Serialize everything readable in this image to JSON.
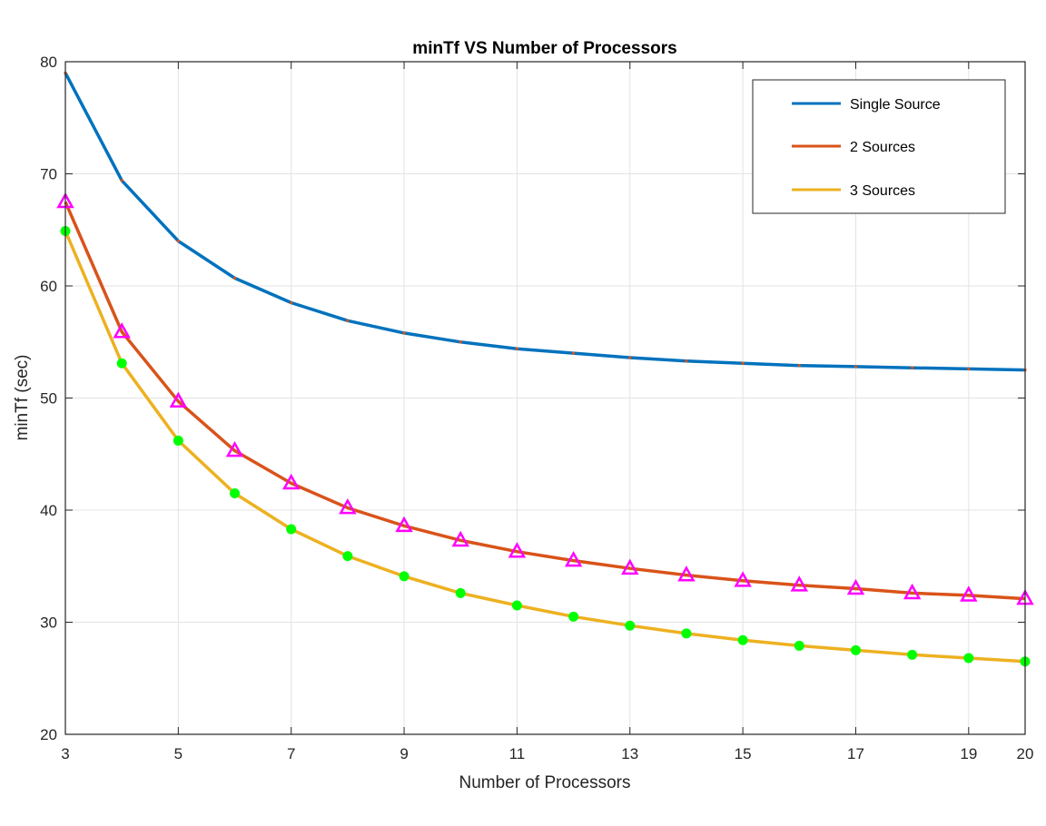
{
  "chart_data": {
    "type": "line",
    "title": "minTf VS Number of Processors",
    "xlabel": "Number of Processors",
    "ylabel": "minTf (sec)",
    "xlim": [
      3,
      20
    ],
    "ylim": [
      20,
      80
    ],
    "xticks": [
      3,
      5,
      7,
      9,
      11,
      13,
      15,
      17,
      19,
      20
    ],
    "yticks": [
      20,
      30,
      40,
      50,
      60,
      70,
      80
    ],
    "grid": true,
    "legend_position": "top-right",
    "x": [
      3,
      4,
      5,
      6,
      7,
      8,
      9,
      10,
      11,
      12,
      13,
      14,
      15,
      16,
      17,
      18,
      19,
      20
    ],
    "series": [
      {
        "name": "Single Source",
        "color": "#0072BD",
        "marker": "none",
        "values": [
          79.0,
          69.4,
          64.0,
          60.7,
          58.5,
          56.9,
          55.8,
          55.0,
          54.4,
          54.0,
          53.6,
          53.3,
          53.1,
          52.9,
          52.8,
          52.7,
          52.6,
          52.5
        ]
      },
      {
        "name": "2 Sources",
        "color": "#D95319",
        "marker": "triangle",
        "marker_color": "#FF00FF",
        "values": [
          67.5,
          55.9,
          49.7,
          45.3,
          42.4,
          40.2,
          38.6,
          37.3,
          36.3,
          35.5,
          34.8,
          34.2,
          33.7,
          33.3,
          33.0,
          32.6,
          32.4,
          32.1
        ]
      },
      {
        "name": "3 Sources",
        "color": "#EDB120",
        "marker": "circle",
        "marker_color": "#00FF00",
        "values": [
          64.9,
          53.1,
          46.2,
          41.5,
          38.3,
          35.9,
          34.1,
          32.6,
          31.5,
          30.5,
          29.7,
          29.0,
          28.4,
          27.9,
          27.5,
          27.1,
          26.8,
          26.5
        ]
      }
    ]
  }
}
